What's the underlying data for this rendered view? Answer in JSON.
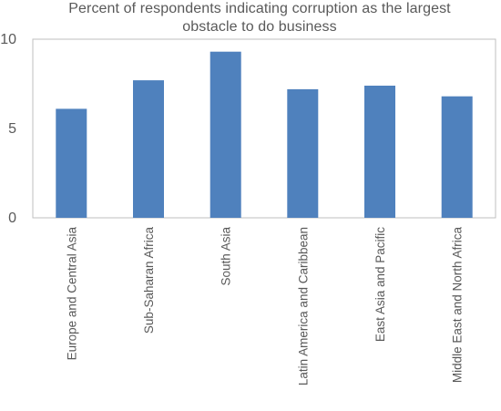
{
  "chart_data": {
    "type": "bar",
    "title_lines": [
      "Percent of respondents indicating corruption as the largest",
      "obstacle to do business"
    ],
    "categories": [
      "Europe and Central Asia",
      "Sub-Saharan Africa",
      "South Asia",
      "Latin America and Caribbean",
      "East Asia and Pacific",
      "Middle East and North Africa"
    ],
    "values": [
      6.1,
      7.7,
      9.3,
      7.2,
      7.4,
      6.8
    ],
    "ylim": [
      0,
      10
    ],
    "yticks": [
      "0",
      "5",
      "10"
    ],
    "xlabel": "",
    "ylabel": "",
    "grid": false,
    "legend": "none",
    "colors": {
      "bar": "#4f81bd",
      "axis": "#bfbfbf",
      "text": "#595959"
    }
  }
}
